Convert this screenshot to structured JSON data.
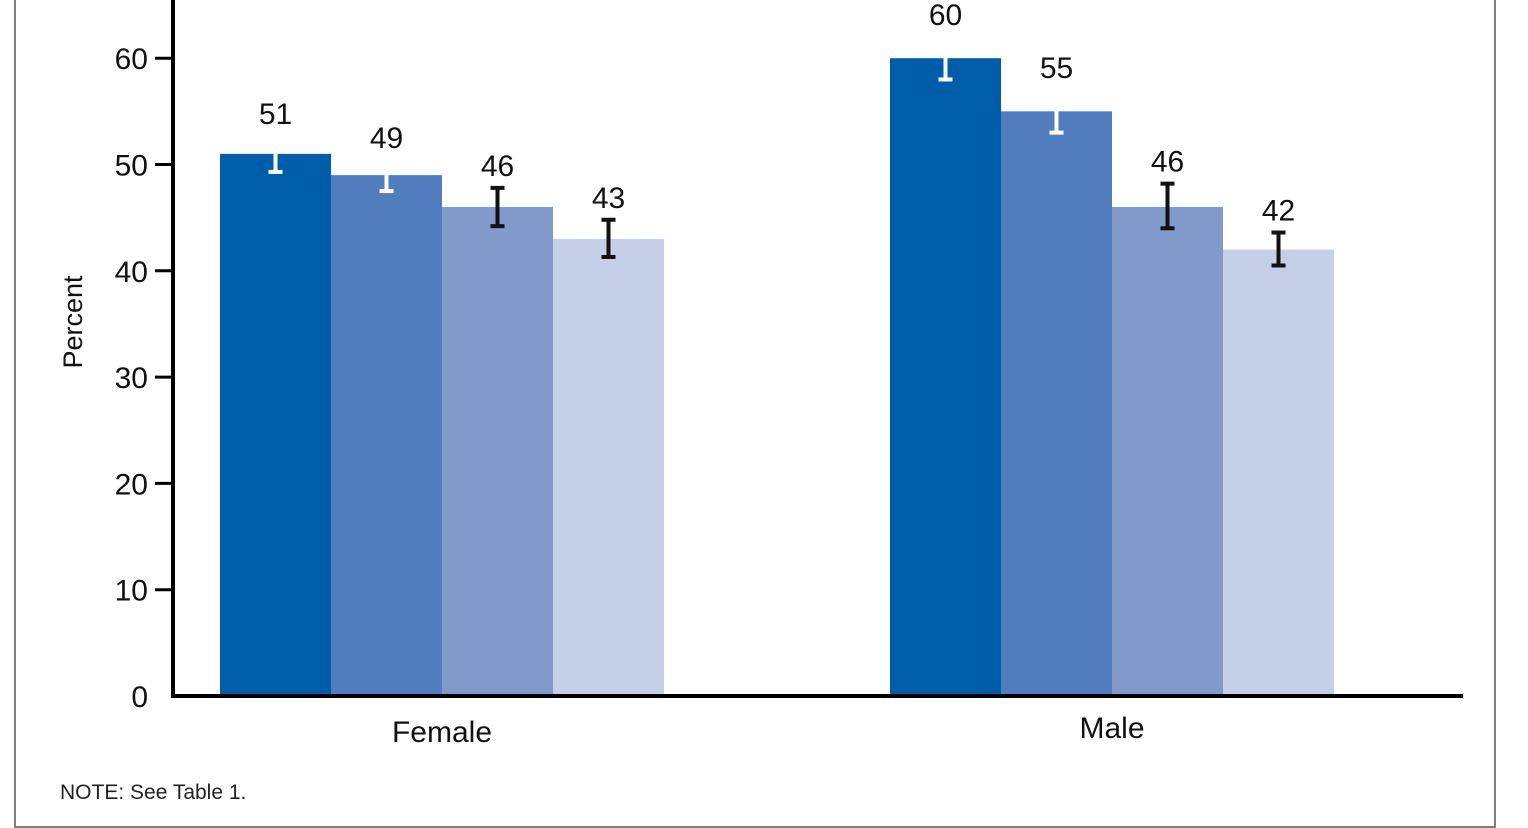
{
  "chart_data": {
    "type": "bar",
    "title": "",
    "xlabel": "",
    "ylabel": "Percent",
    "ylim": [
      0,
      65
    ],
    "yticks": [
      0,
      10,
      20,
      30,
      40,
      50,
      60
    ],
    "grid": false,
    "legend": "none",
    "categories": [
      "Female",
      "Male"
    ],
    "series": [
      {
        "color": "#005daa",
        "values": [
          51,
          60
        ],
        "error_low": [
          49.3,
          58
        ],
        "error_high": [
          52.7,
          62
        ],
        "error_color": "#ffffff"
      },
      {
        "color": "#517cbd",
        "values": [
          49,
          55
        ],
        "error_low": [
          47.5,
          53
        ],
        "error_high": [
          50.4,
          57
        ],
        "error_color": "#ffffff"
      },
      {
        "color": "#7f9acb",
        "values": [
          46,
          46
        ],
        "error_low": [
          44.2,
          44
        ],
        "error_high": [
          47.8,
          48.2
        ],
        "error_color": "#111111"
      },
      {
        "color": "#c5cfe8",
        "values": [
          43,
          42
        ],
        "error_low": [
          41.3,
          40.5
        ],
        "error_high": [
          44.8,
          43.6
        ],
        "error_color": "#111111"
      }
    ]
  },
  "note": "NOTE: See Table 1."
}
